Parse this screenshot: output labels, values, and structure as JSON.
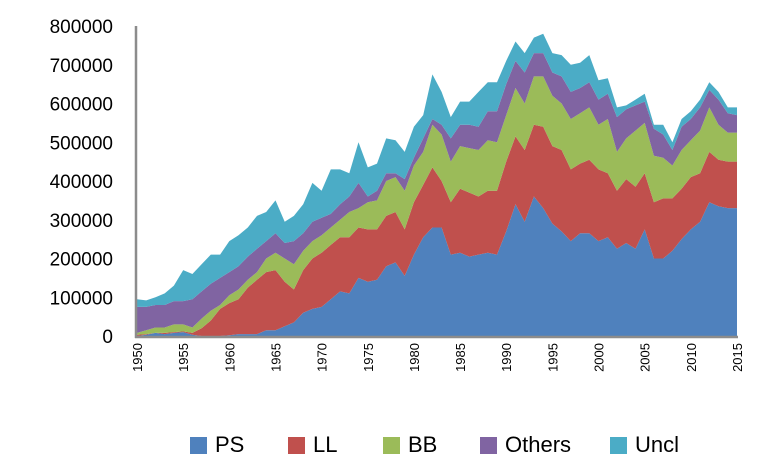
{
  "chart_data": {
    "type": "area",
    "stacked": true,
    "title": "",
    "xlabel": "",
    "ylabel": "",
    "ylim": [
      0,
      800000
    ],
    "yticks": [
      0,
      100000,
      200000,
      300000,
      400000,
      500000,
      600000,
      700000,
      800000
    ],
    "xlim": [
      1950,
      2015
    ],
    "xticks": [
      1950,
      1955,
      1960,
      1965,
      1970,
      1975,
      1980,
      1985,
      1990,
      1995,
      2000,
      2005,
      2010,
      2015
    ],
    "legend_position": "bottom",
    "grid": false,
    "x": [
      1950,
      1951,
      1952,
      1953,
      1954,
      1955,
      1956,
      1957,
      1958,
      1959,
      1960,
      1961,
      1962,
      1963,
      1964,
      1965,
      1966,
      1967,
      1968,
      1969,
      1970,
      1971,
      1972,
      1973,
      1974,
      1975,
      1976,
      1977,
      1978,
      1979,
      1980,
      1981,
      1982,
      1983,
      1984,
      1985,
      1986,
      1987,
      1988,
      1989,
      1990,
      1991,
      1992,
      1993,
      1994,
      1995,
      1996,
      1997,
      1998,
      1999,
      2000,
      2001,
      2002,
      2003,
      2004,
      2005,
      2006,
      2007,
      2008,
      2009,
      2010,
      2011,
      2012,
      2013,
      2014,
      2015
    ],
    "series": [
      {
        "name": "PS",
        "color": "#4F81BD",
        "values": [
          0,
          3000,
          8000,
          5000,
          8000,
          10000,
          3000,
          0,
          0,
          0,
          2000,
          5000,
          5000,
          5000,
          15000,
          15000,
          25000,
          35000,
          60000,
          70000,
          75000,
          95000,
          115000,
          110000,
          150000,
          140000,
          145000,
          180000,
          190000,
          155000,
          210000,
          255000,
          280000,
          280000,
          210000,
          215000,
          205000,
          210000,
          215000,
          210000,
          270000,
          340000,
          295000,
          360000,
          330000,
          290000,
          270000,
          245000,
          265000,
          265000,
          245000,
          255000,
          225000,
          240000,
          225000,
          275000,
          200000,
          200000,
          220000,
          250000,
          275000,
          295000,
          345000,
          335000,
          330000,
          330000
        ]
      },
      {
        "name": "LL",
        "color": "#C0504D",
        "values": [
          3000,
          2000,
          0,
          3000,
          2000,
          2000,
          5000,
          20000,
          40000,
          70000,
          83000,
          90000,
          120000,
          140000,
          150000,
          155000,
          115000,
          85000,
          110000,
          130000,
          140000,
          140000,
          140000,
          145000,
          130000,
          135000,
          130000,
          130000,
          130000,
          120000,
          135000,
          135000,
          155000,
          120000,
          135000,
          165000,
          165000,
          150000,
          160000,
          165000,
          180000,
          175000,
          185000,
          185000,
          210000,
          200000,
          210000,
          185000,
          180000,
          190000,
          185000,
          165000,
          150000,
          165000,
          160000,
          145000,
          145000,
          155000,
          135000,
          130000,
          135000,
          125000,
          130000,
          120000,
          120000,
          120000
        ]
      },
      {
        "name": "BB",
        "color": "#9BBB59",
        "values": [
          5000,
          10000,
          14000,
          14000,
          20000,
          18000,
          14000,
          25000,
          25000,
          10000,
          20000,
          25000,
          20000,
          20000,
          35000,
          45000,
          60000,
          65000,
          50000,
          45000,
          45000,
          45000,
          45000,
          65000,
          50000,
          70000,
          75000,
          90000,
          90000,
          100000,
          95000,
          85000,
          110000,
          120000,
          105000,
          110000,
          115000,
          120000,
          130000,
          125000,
          120000,
          125000,
          120000,
          125000,
          130000,
          130000,
          120000,
          130000,
          130000,
          135000,
          115000,
          140000,
          100000,
          105000,
          145000,
          130000,
          120000,
          105000,
          85000,
          100000,
          95000,
          110000,
          115000,
          90000,
          75000,
          75000
        ]
      },
      {
        "name": "Others",
        "color": "#8064A2",
        "values": [
          67000,
          60000,
          58000,
          58000,
          60000,
          60000,
          73000,
          70000,
          70000,
          70000,
          60000,
          60000,
          60000,
          60000,
          45000,
          50000,
          40000,
          60000,
          45000,
          50000,
          45000,
          35000,
          40000,
          40000,
          65000,
          15000,
          25000,
          20000,
          10000,
          30000,
          20000,
          35000,
          15000,
          25000,
          60000,
          55000,
          60000,
          60000,
          75000,
          80000,
          80000,
          70000,
          80000,
          60000,
          60000,
          60000,
          70000,
          70000,
          65000,
          65000,
          65000,
          65000,
          90000,
          75000,
          65000,
          55000,
          70000,
          60000,
          40000,
          60000,
          55000,
          60000,
          45000,
          65000,
          50000,
          45000
        ]
      },
      {
        "name": "Uncl",
        "color": "#4BACC6",
        "values": [
          20000,
          17000,
          20000,
          30000,
          40000,
          80000,
          65000,
          70000,
          75000,
          60000,
          80000,
          80000,
          75000,
          85000,
          75000,
          85000,
          55000,
          65000,
          75000,
          100000,
          70000,
          115000,
          90000,
          60000,
          105000,
          75000,
          70000,
          90000,
          85000,
          70000,
          80000,
          60000,
          115000,
          85000,
          55000,
          60000,
          60000,
          90000,
          75000,
          75000,
          60000,
          50000,
          50000,
          40000,
          50000,
          50000,
          55000,
          70000,
          65000,
          70000,
          50000,
          40000,
          25000,
          10000,
          15000,
          20000,
          10000,
          25000,
          20000,
          20000,
          20000,
          20000,
          20000,
          20000,
          15000,
          20000
        ]
      }
    ]
  }
}
